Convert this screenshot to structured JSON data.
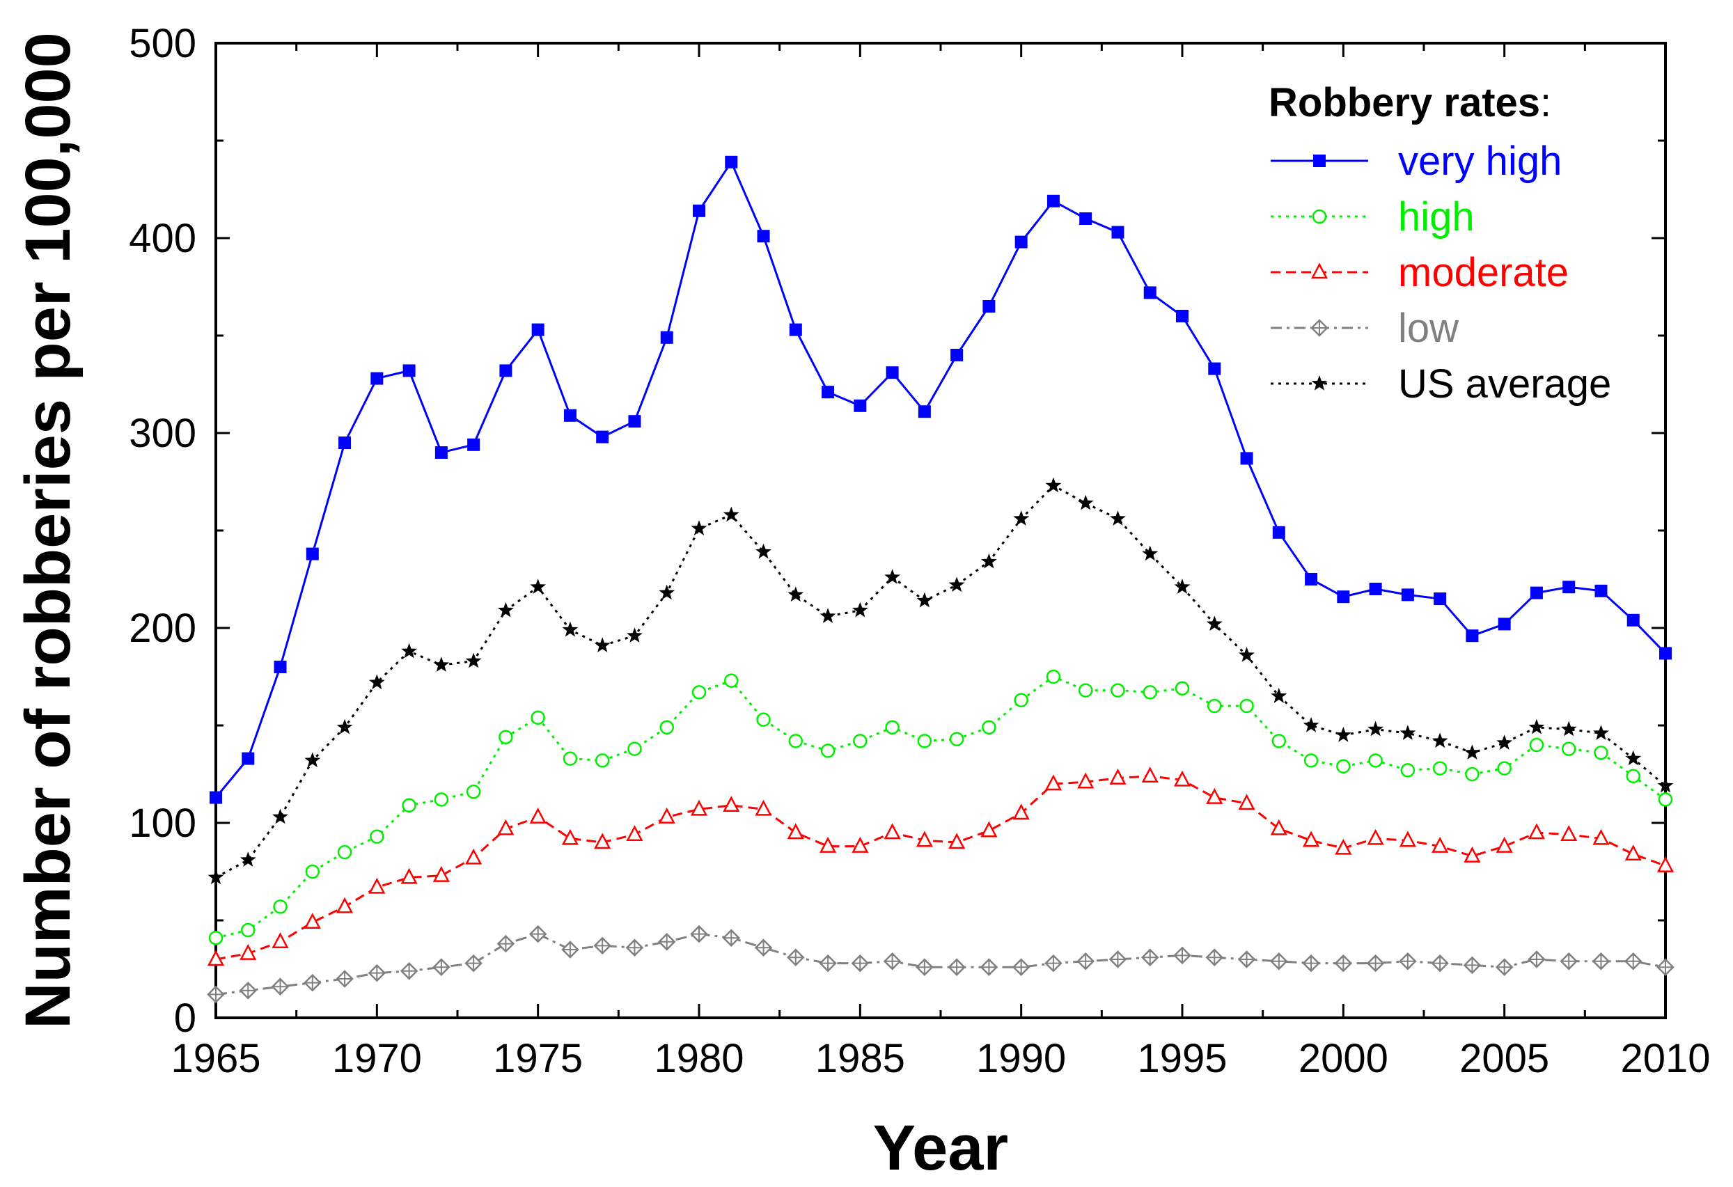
{
  "chart_data": {
    "type": "line",
    "xlabel": "Year",
    "ylabel": "Number of robberies per 100,000",
    "xlim": [
      1965,
      2010
    ],
    "ylim": [
      0,
      500
    ],
    "xticks": [
      1965,
      1970,
      1975,
      1980,
      1985,
      1990,
      1995,
      2000,
      2005,
      2010
    ],
    "yticks": [
      0,
      100,
      200,
      300,
      400,
      500
    ],
    "grid": false,
    "legend_position": "top-right",
    "legend_title": "Robbery rates",
    "legend_title_suffix": ":",
    "x": [
      1965,
      1966,
      1967,
      1968,
      1969,
      1970,
      1971,
      1972,
      1973,
      1974,
      1975,
      1976,
      1977,
      1978,
      1979,
      1980,
      1981,
      1982,
      1983,
      1984,
      1985,
      1986,
      1987,
      1988,
      1989,
      1990,
      1991,
      1992,
      1993,
      1994,
      1995,
      1996,
      1997,
      1998,
      1999,
      2000,
      2001,
      2002,
      2003,
      2004,
      2005,
      2006,
      2007,
      2008,
      2009,
      2010
    ],
    "series": [
      {
        "name": "very high",
        "color": "#0000ff",
        "line_style": "solid",
        "marker": "filled-square",
        "values": [
          113,
          133,
          180,
          238,
          295,
          328,
          332,
          290,
          294,
          332,
          353,
          309,
          298,
          306,
          349,
          414,
          439,
          401,
          353,
          321,
          314,
          331,
          311,
          340,
          365,
          398,
          419,
          410,
          403,
          372,
          360,
          333,
          287,
          249,
          225,
          216,
          220,
          217,
          215,
          196,
          202,
          218,
          221,
          219,
          204,
          187
        ]
      },
      {
        "name": "high",
        "color": "#00ee00",
        "line_style": "dotted",
        "marker": "open-circle",
        "values": [
          41,
          45,
          57,
          75,
          85,
          93,
          109,
          112,
          116,
          144,
          154,
          133,
          132,
          138,
          149,
          167,
          173,
          153,
          142,
          137,
          142,
          149,
          142,
          143,
          149,
          163,
          175,
          168,
          168,
          167,
          169,
          160,
          160,
          142,
          132,
          129,
          132,
          127,
          128,
          125,
          128,
          140,
          138,
          136,
          124,
          112
        ]
      },
      {
        "name": "moderate",
        "color": "#ff0000",
        "line_style": "dashed",
        "marker": "open-triangle",
        "values": [
          30,
          33,
          39,
          49,
          57,
          67,
          72,
          73,
          82,
          97,
          103,
          92,
          90,
          94,
          103,
          107,
          109,
          107,
          95,
          88,
          88,
          95,
          91,
          90,
          96,
          105,
          120,
          121,
          123,
          124,
          122,
          113,
          110,
          97,
          91,
          87,
          92,
          91,
          88,
          83,
          88,
          95,
          94,
          92,
          84,
          78
        ]
      },
      {
        "name": "low",
        "color": "#808080",
        "line_style": "dash-dot",
        "marker": "crossed-diamond",
        "values": [
          12,
          14,
          16,
          18,
          20,
          23,
          24,
          26,
          28,
          38,
          43,
          35,
          37,
          36,
          39,
          43,
          41,
          36,
          31,
          28,
          28,
          29,
          26,
          26,
          26,
          26,
          28,
          29,
          30,
          31,
          32,
          31,
          30,
          29,
          28,
          28,
          28,
          29,
          28,
          27,
          26,
          30,
          29,
          29,
          29,
          26
        ]
      },
      {
        "name": "US average",
        "color": "#000000",
        "line_style": "dotted",
        "marker": "filled-star",
        "values": [
          72,
          81,
          103,
          132,
          149,
          172,
          188,
          181,
          183,
          209,
          221,
          199,
          191,
          196,
          218,
          251,
          258,
          239,
          217,
          206,
          209,
          226,
          214,
          222,
          234,
          256,
          273,
          264,
          256,
          238,
          221,
          202,
          186,
          165,
          150,
          145,
          148,
          146,
          142,
          136,
          141,
          149,
          148,
          146,
          133,
          119
        ]
      }
    ]
  }
}
